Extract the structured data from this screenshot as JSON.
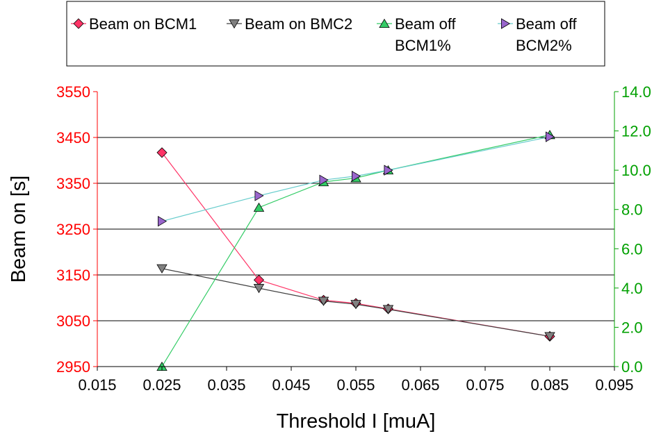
{
  "chart_data": {
    "type": "line",
    "title": "",
    "xlabel": "Threshold I [muA]",
    "ylabel": "Beam on [s]",
    "y2label": "",
    "xlim": [
      0.015,
      0.095
    ],
    "xticks": [
      "0.015",
      "0.025",
      "0.035",
      "0.045",
      "0.055",
      "0.065",
      "0.075",
      "0.085",
      "0.095"
    ],
    "ylim": [
      2950,
      3550
    ],
    "yticks": [
      "2950",
      "3050",
      "3150",
      "3250",
      "3350",
      "3450",
      "3550"
    ],
    "y2lim": [
      0.0,
      14.0
    ],
    "y2ticks": [
      "0.0",
      "2.0",
      "4.0",
      "6.0",
      "8.0",
      "10.0",
      "12.0",
      "14.0"
    ],
    "y_axis_color": "#ff0000",
    "y2_axis_color": "#00a000",
    "grid": "horizontal",
    "legend_position": "top",
    "series": [
      {
        "name": "Beam on BCM1",
        "axis": "left",
        "marker": "diamond",
        "color": "#ff3366",
        "line_color": "#ff3366",
        "x": [
          0.025,
          0.04,
          0.05,
          0.055,
          0.06,
          0.085
        ],
        "y": [
          3417,
          3139,
          3095,
          3088,
          3076,
          3016
        ]
      },
      {
        "name": "Beam on BMC2",
        "axis": "left",
        "marker": "triangle-down",
        "color": "#808080",
        "line_color": "#404040",
        "x": [
          0.025,
          0.04,
          0.05,
          0.055,
          0.06,
          0.085
        ],
        "y": [
          3164,
          3121,
          3093,
          3086,
          3075,
          3016
        ]
      },
      {
        "name": [
          "Beam off",
          "BCM1%"
        ],
        "axis": "right",
        "marker": "triangle-up",
        "color": "#33cc66",
        "line_color": "#33cc66",
        "x": [
          0.025,
          0.04,
          0.05,
          0.055,
          0.06,
          0.085
        ],
        "y": [
          0.0,
          8.1,
          9.4,
          9.6,
          10.0,
          11.8
        ]
      },
      {
        "name": [
          "Beam off",
          "BCM2%"
        ],
        "axis": "right",
        "marker": "triangle-right",
        "color": "#9966cc",
        "line_color": "#66cccc",
        "x": [
          0.025,
          0.04,
          0.05,
          0.055,
          0.06,
          0.085
        ],
        "y": [
          7.4,
          8.7,
          9.5,
          9.7,
          10.0,
          11.7
        ]
      }
    ]
  }
}
